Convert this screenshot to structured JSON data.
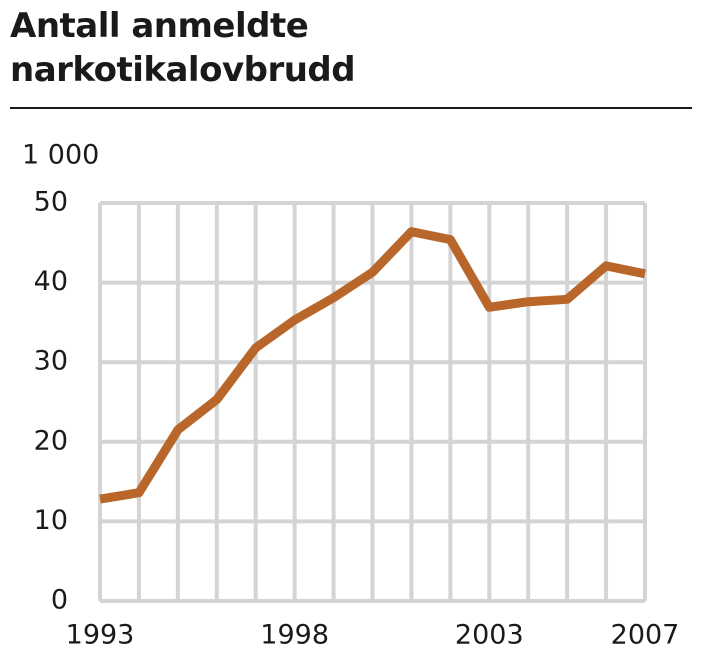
{
  "chart_data": {
    "type": "line",
    "title": "Antall anmeldte\nnarkotikalovbrudd",
    "y_unit": "1 000",
    "x": [
      1993,
      1994,
      1995,
      1996,
      1997,
      1998,
      1999,
      2000,
      2001,
      2002,
      2003,
      2004,
      2005,
      2006,
      2007
    ],
    "series": [
      {
        "color": "#b8662a",
        "values": [
          12.8,
          13.6,
          21.5,
          25.3,
          31.8,
          35.3,
          38.1,
          41.3,
          46.4,
          45.4,
          36.9,
          37.6,
          37.9,
          42.1,
          41.1
        ]
      }
    ],
    "xlim": [
      1993,
      2007
    ],
    "xticks": [
      1993,
      1998,
      2003,
      2007
    ],
    "ylim": [
      0,
      50
    ],
    "yticks": [
      0,
      10,
      20,
      30,
      40,
      50
    ],
    "grid": true
  }
}
